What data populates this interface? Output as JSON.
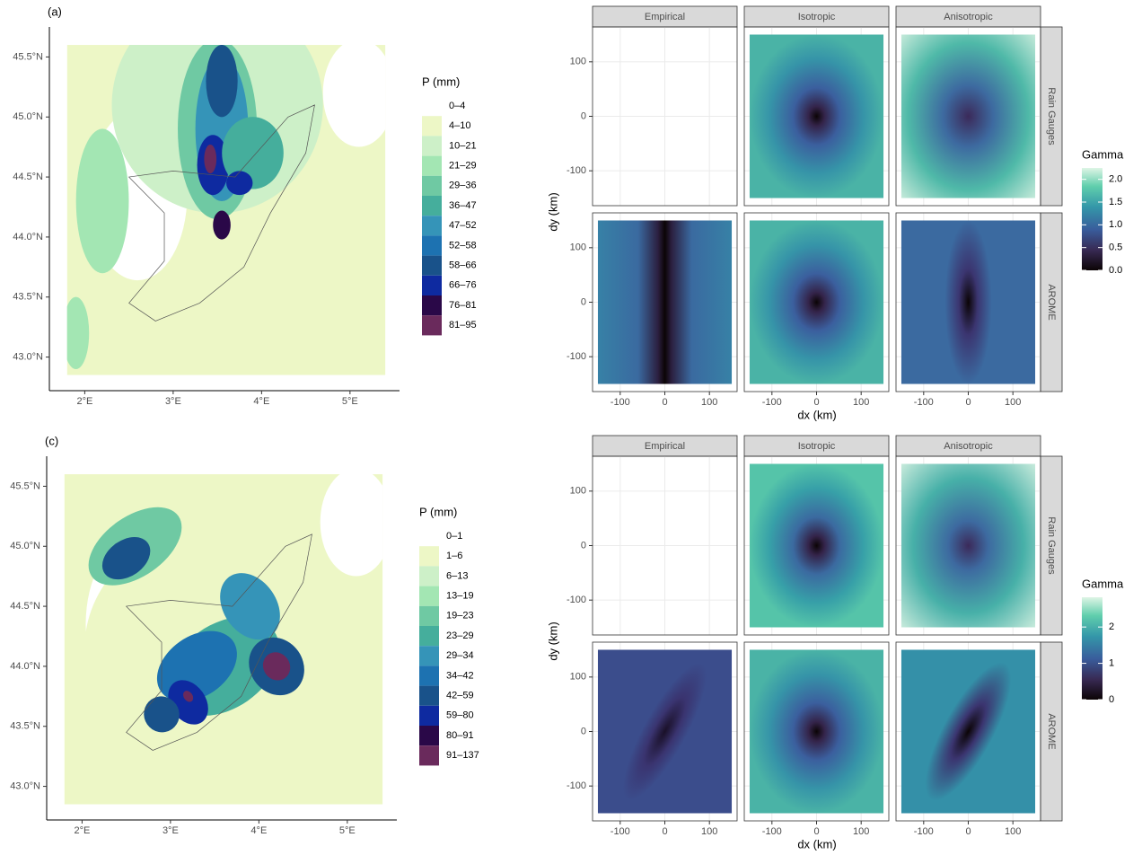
{
  "maps": [
    {
      "label": "(a)",
      "legend_title": "P (mm)",
      "classes": [
        {
          "label": "0–4",
          "color": "#ffffff"
        },
        {
          "label": "4–10",
          "color": "#edf7c6"
        },
        {
          "label": "10–21",
          "color": "#cdf0c8"
        },
        {
          "label": "21–29",
          "color": "#a3e6b3"
        },
        {
          "label": "29–36",
          "color": "#6fc9a3"
        },
        {
          "label": "36–47",
          "color": "#45ae9c"
        },
        {
          "label": "47–52",
          "color": "#3594b8"
        },
        {
          "label": "52–58",
          "color": "#1d72b1"
        },
        {
          "label": "58–66",
          "color": "#19528a"
        },
        {
          "label": "66–76",
          "color": "#0e2aa0"
        },
        {
          "label": "76–81",
          "color": "#2a0848"
        },
        {
          "label": "81–95",
          "color": "#6a2a5c"
        }
      ],
      "xlim": [
        1.6,
        5.56
      ],
      "ylim": [
        42.72,
        45.75
      ],
      "xticks": [
        {
          "value": 2,
          "label": "2°E"
        },
        {
          "value": 3,
          "label": "3°E"
        },
        {
          "value": 4,
          "label": "4°E"
        },
        {
          "value": 5,
          "label": "5°E"
        }
      ],
      "yticks": [
        {
          "value": 43,
          "label": "43.0°N"
        },
        {
          "value": 43.5,
          "label": "43.5°N"
        },
        {
          "value": 44,
          "label": "44.0°N"
        },
        {
          "value": 44.5,
          "label": "44.5°N"
        },
        {
          "value": 45,
          "label": "45.0°N"
        },
        {
          "value": 45.5,
          "label": "45.5°N"
        }
      ]
    },
    {
      "label": "(c)",
      "legend_title": "P (mm)",
      "classes": [
        {
          "label": "0–1",
          "color": "#ffffff"
        },
        {
          "label": "1–6",
          "color": "#edf7c6"
        },
        {
          "label": "6–13",
          "color": "#cdf0c8"
        },
        {
          "label": "13–19",
          "color": "#a3e6b3"
        },
        {
          "label": "19–23",
          "color": "#6fc9a3"
        },
        {
          "label": "23–29",
          "color": "#45ae9c"
        },
        {
          "label": "29–34",
          "color": "#3594b8"
        },
        {
          "label": "34–42",
          "color": "#1d72b1"
        },
        {
          "label": "42–59",
          "color": "#19528a"
        },
        {
          "label": "59–80",
          "color": "#0e2aa0"
        },
        {
          "label": "80–91",
          "color": "#2a0848"
        },
        {
          "label": "91–137",
          "color": "#6a2a5c"
        }
      ],
      "xlim": [
        1.6,
        5.56
      ],
      "ylim": [
        42.72,
        45.75
      ],
      "xticks": [
        {
          "value": 2,
          "label": "2°E"
        },
        {
          "value": 3,
          "label": "3°E"
        },
        {
          "value": 4,
          "label": "4°E"
        },
        {
          "value": 5,
          "label": "5°E"
        }
      ],
      "yticks": [
        {
          "value": 43,
          "label": "43.0°N"
        },
        {
          "value": 43.5,
          "label": "43.5°N"
        },
        {
          "value": 44,
          "label": "44.0°N"
        },
        {
          "value": 44.5,
          "label": "44.5°N"
        },
        {
          "value": 45,
          "label": "45.0°N"
        },
        {
          "value": 45.5,
          "label": "45.5°N"
        }
      ]
    }
  ],
  "variograms": [
    {
      "columns": [
        "Empirical",
        "Isotropic",
        "Anisotropic"
      ],
      "rows": [
        "Rain Gauges",
        "AROME"
      ],
      "xlabel": "dx (km)",
      "ylabel": "dy (km)",
      "xlim": [
        -162,
        162
      ],
      "ylim": [
        -164,
        164
      ],
      "xticks": [
        -100,
        0,
        100
      ],
      "yticks": [
        -100,
        0,
        100
      ],
      "colorbar": {
        "title": "Gamma",
        "lim": [
          0,
          2.25
        ],
        "ticks": [
          {
            "value": 0,
            "label": "0.0"
          },
          {
            "value": 0.5,
            "label": "0.5"
          },
          {
            "value": 1,
            "label": "1.0"
          },
          {
            "value": 1.5,
            "label": "1.5"
          },
          {
            "value": 2,
            "label": "2.0"
          }
        ]
      }
    },
    {
      "columns": [
        "Empirical",
        "Isotropic",
        "Anisotropic"
      ],
      "rows": [
        "Rain Gauges",
        "AROME"
      ],
      "xlabel": "dx (km)",
      "ylabel": "dy (km)",
      "xlim": [
        -162,
        162
      ],
      "ylim": [
        -164,
        164
      ],
      "xticks": [
        -100,
        0,
        100
      ],
      "yticks": [
        -100,
        0,
        100
      ],
      "colorbar": {
        "title": "Gamma",
        "lim": [
          0,
          2.82
        ],
        "ticks": [
          0,
          1,
          2
        ]
      }
    }
  ]
}
